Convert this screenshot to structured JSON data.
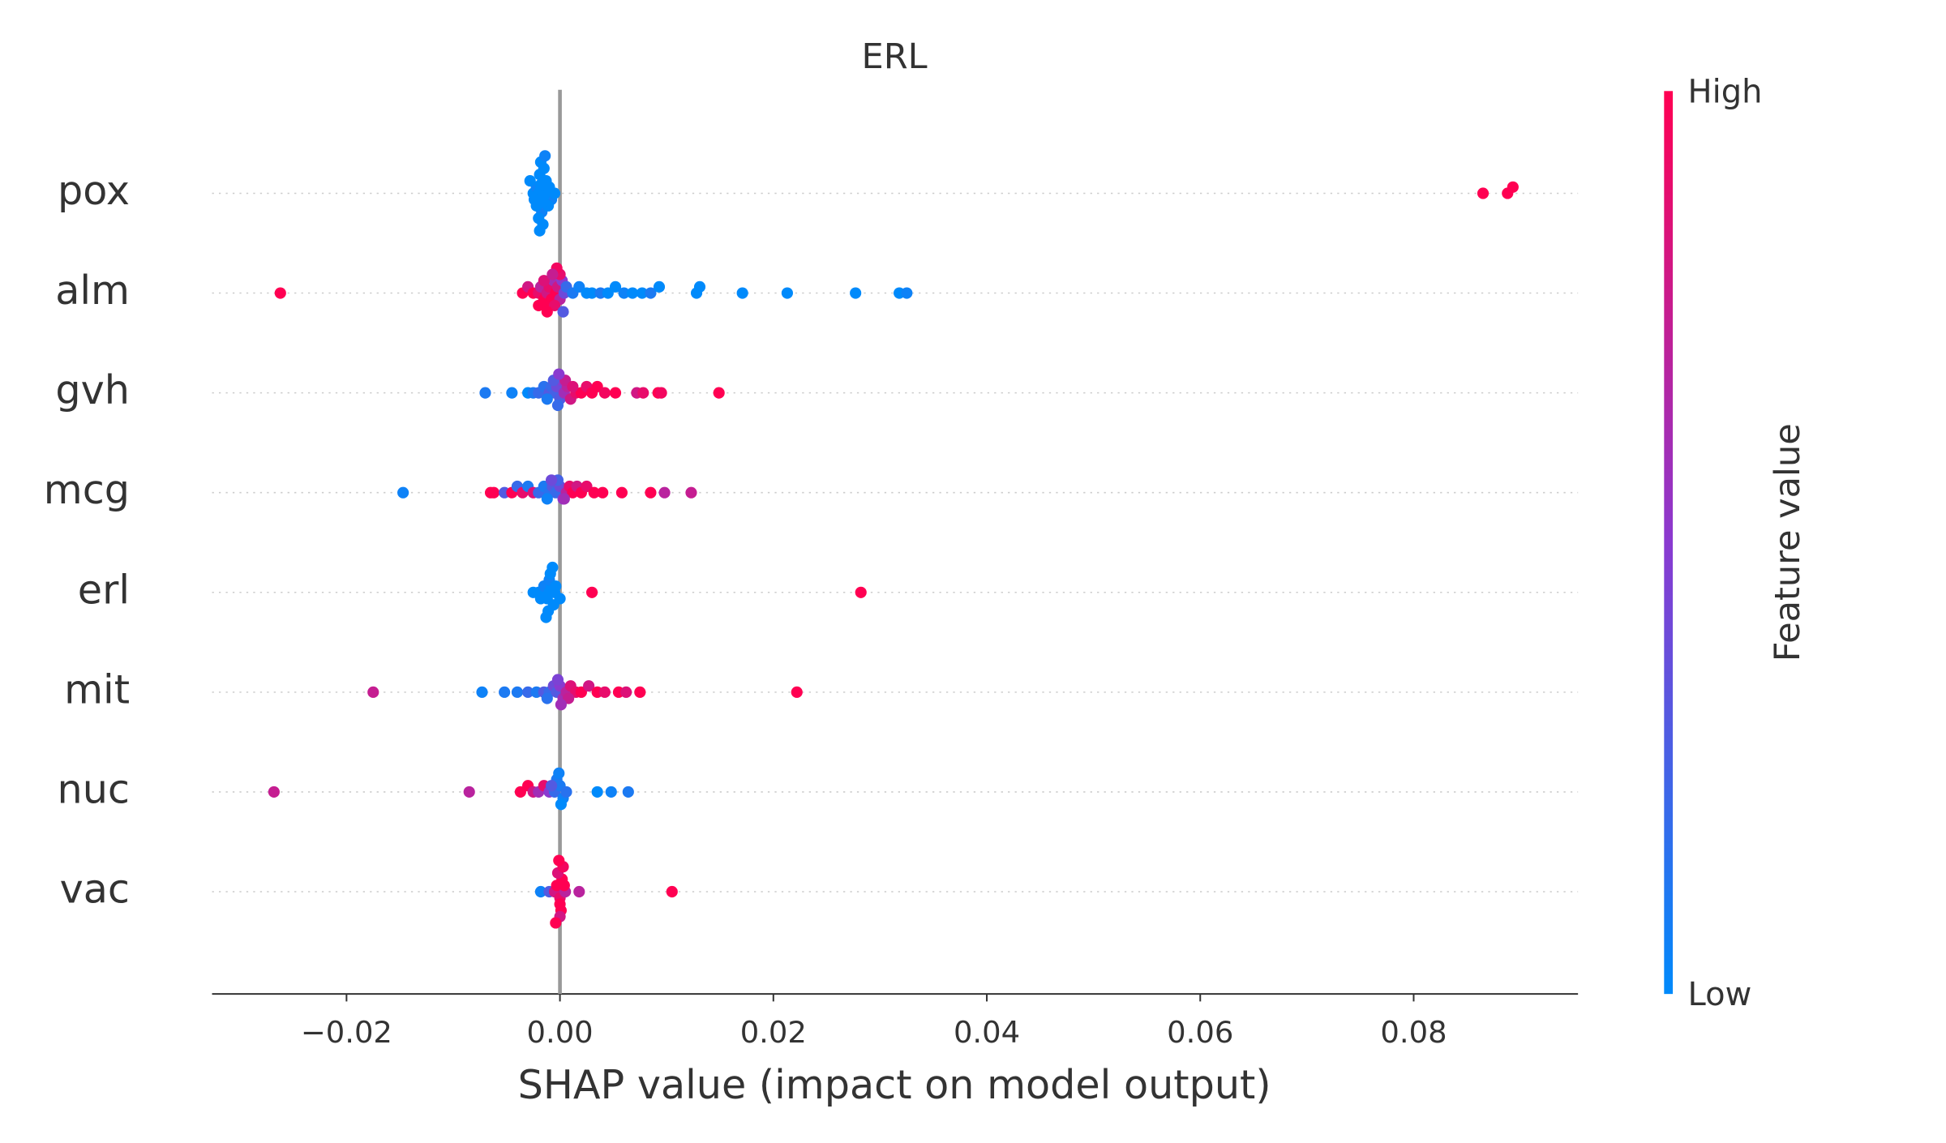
{
  "chart_data": {
    "type": "beeswarm",
    "title": "ERL",
    "x_label": "SHAP value (impact on model output)",
    "xlim": [
      -0.0326,
      0.0954
    ],
    "xticks": [
      {
        "value": -0.02,
        "label": "−0.02"
      },
      {
        "value": 0,
        "label": "0.00"
      },
      0.02,
      0.04,
      0.06,
      0.08
    ],
    "colormap": [
      "#008afb",
      "#8a3ad0",
      "#ff0052"
    ],
    "colorbar": {
      "label": "Feature value",
      "high": "High",
      "low": "Low"
    },
    "series": [
      {
        "name": "pox",
        "values": [
          -0.0025,
          -0.0022,
          -0.002,
          -0.0018,
          -0.0016,
          -0.0014,
          -0.0012,
          -0.001,
          -0.0008,
          -0.0024,
          -0.0021,
          -0.0019,
          -0.0017,
          -0.0015,
          -0.0013,
          -0.0011,
          -0.002,
          -0.0018,
          -0.0016,
          -0.0014,
          -0.0019,
          -0.0017,
          -0.0015,
          -0.0018,
          -0.0016,
          -0.0005,
          -0.0028,
          -0.0022,
          0.0865,
          0.0888,
          0.0893
        ],
        "feature_values": [
          0,
          0.05,
          0,
          0,
          0.05,
          0,
          0,
          0,
          0.05,
          0,
          0,
          0,
          0.05,
          0,
          0,
          0,
          0,
          0,
          0,
          0.05,
          0,
          0,
          0,
          0,
          0,
          0,
          0,
          0,
          1,
          1,
          1
        ]
      },
      {
        "name": "alm",
        "values": [
          -0.0262,
          -0.0035,
          -0.003,
          -0.0025,
          -0.002,
          -0.0018,
          -0.0015,
          -0.0012,
          -0.001,
          -0.0008,
          -0.0006,
          -0.0004,
          -0.0002,
          0,
          0.0002,
          0.0004,
          -0.001,
          -0.0005,
          -0.0015,
          -0.002,
          0,
          0.0003,
          -0.0003,
          -0.0007,
          -0.0012,
          0.0006,
          0.0012,
          0.0018,
          0.0025,
          0.003,
          0.0038,
          0.0045,
          0.0052,
          0.006,
          0.0068,
          0.0077,
          0.0085,
          0.0093,
          0.0128,
          0.0131,
          0.0171,
          0.0213,
          0.0277,
          0.0318,
          0.0325
        ],
        "feature_values": [
          1,
          1,
          0.8,
          1,
          0.9,
          0.7,
          1,
          0.8,
          0.9,
          1,
          0.6,
          1,
          0.8,
          0.7,
          0.5,
          0.4,
          1,
          0.9,
          0.85,
          1,
          0.9,
          0.3,
          0.95,
          0.75,
          1,
          0.2,
          0.1,
          0.05,
          0,
          0,
          0.1,
          0,
          0,
          0.05,
          0,
          0,
          0.1,
          0,
          0,
          0,
          0,
          0,
          0,
          0,
          0.05
        ]
      },
      {
        "name": "gvh",
        "values": [
          -0.007,
          -0.0045,
          -0.003,
          -0.0025,
          -0.002,
          -0.0015,
          -0.001,
          -0.0008,
          -0.0005,
          -0.0003,
          0,
          0.0002,
          -0.0012,
          -0.0006,
          -0.0002,
          0.0004,
          0.0007,
          0.001,
          0.0015,
          0.002,
          0.0025,
          0.003,
          0.0035,
          0.0042,
          0.0052,
          0.0072,
          0.0078,
          0.0092,
          0.0095,
          0.0149,
          0.0005,
          0.0012,
          -0.0001
        ],
        "feature_values": [
          0.1,
          0.05,
          0,
          0.1,
          0.2,
          0.15,
          0.3,
          0.2,
          0.25,
          0.4,
          0.3,
          0.5,
          0.1,
          0.3,
          0.2,
          0.6,
          0.7,
          0.8,
          0.9,
          1,
          0.9,
          1,
          1,
          0.95,
          1,
          0.8,
          0.9,
          1,
          0.95,
          1,
          0.75,
          0.85,
          0.5
        ]
      },
      {
        "name": "mcg",
        "values": [
          -0.0147,
          -0.0065,
          -0.0062,
          -0.0052,
          -0.0045,
          -0.004,
          -0.0035,
          -0.003,
          -0.0025,
          -0.002,
          -0.0015,
          -0.001,
          -0.0007,
          -0.0004,
          0,
          0.0003,
          0.0006,
          0.0009,
          -0.0012,
          -0.0002,
          0.0012,
          0.0016,
          0.002,
          0.0025,
          0.0032,
          0.004,
          0.0058,
          0.0085,
          0.0098,
          0.0123,
          -0.0008,
          0.0004
        ],
        "feature_values": [
          0.05,
          1,
          1,
          0.3,
          1,
          0.2,
          0.9,
          0.1,
          0.85,
          0.2,
          0.1,
          0.15,
          0.3,
          0.2,
          0.4,
          0.5,
          0.7,
          0.9,
          0.05,
          0.25,
          1,
          0.8,
          1,
          0.9,
          1,
          1,
          1,
          1,
          0.7,
          0.75,
          0.4,
          0.6
        ]
      },
      {
        "name": "erl",
        "values": [
          -0.0025,
          -0.002,
          -0.0015,
          -0.001,
          -0.0008,
          -0.0005,
          -0.0012,
          -0.0018,
          -0.001,
          -0.0006,
          -0.0009,
          -0.0011,
          -0.0007,
          -0.0013,
          -0.0004,
          0,
          0.003,
          0.0282
        ],
        "feature_values": [
          0,
          0,
          0.05,
          0,
          0,
          0,
          0,
          0,
          0.05,
          0,
          0,
          0,
          0,
          0,
          0,
          0,
          1,
          1
        ]
      },
      {
        "name": "mit",
        "values": [
          -0.0175,
          -0.0073,
          -0.0052,
          -0.004,
          -0.003,
          -0.0022,
          -0.0015,
          -0.001,
          -0.0006,
          -0.0003,
          0,
          0.0003,
          0.0006,
          0.001,
          0.0015,
          0.002,
          0.0027,
          0.0035,
          0.0042,
          0.0055,
          0.0062,
          0.0075,
          0.0222,
          -0.0012,
          -0.0002,
          0.0008,
          0.0001
        ],
        "feature_values": [
          0.75,
          0.05,
          0.1,
          0.1,
          0.2,
          0.1,
          0.3,
          0.2,
          0.4,
          0.3,
          0.5,
          0.6,
          0.7,
          0.85,
          0.9,
          1,
          0.8,
          1,
          0.9,
          1,
          0.85,
          1,
          1,
          0.15,
          0.45,
          0.75,
          0.6
        ]
      },
      {
        "name": "nuc",
        "values": [
          -0.0268,
          -0.0085,
          -0.0037,
          -0.003,
          -0.0025,
          -0.002,
          -0.0015,
          -0.001,
          -0.0005,
          0,
          0.0003,
          -0.0003,
          0.0001,
          -0.0001,
          0.0035,
          0.0048,
          0.0064,
          -0.0008,
          0.0006
        ],
        "feature_values": [
          0.75,
          0.7,
          1,
          1,
          0.8,
          0.6,
          0.9,
          0.5,
          0.2,
          0.1,
          0.05,
          0.1,
          0,
          0.05,
          0,
          0.05,
          0.1,
          0.3,
          0.15
        ]
      },
      {
        "name": "vac",
        "values": [
          -0.0018,
          -0.001,
          -0.0005,
          -0.0003,
          0,
          0.0002,
          0.0005,
          0,
          -0.0002,
          0.0001,
          0.0003,
          0,
          -0.0001,
          0.0018,
          0.0105,
          -0.0004,
          0.0004
        ],
        "feature_values": [
          0.05,
          0.3,
          0.8,
          1,
          0.9,
          1,
          0.7,
          1,
          0.85,
          1,
          0.95,
          0.8,
          1,
          0.7,
          1,
          1,
          1
        ]
      }
    ]
  }
}
